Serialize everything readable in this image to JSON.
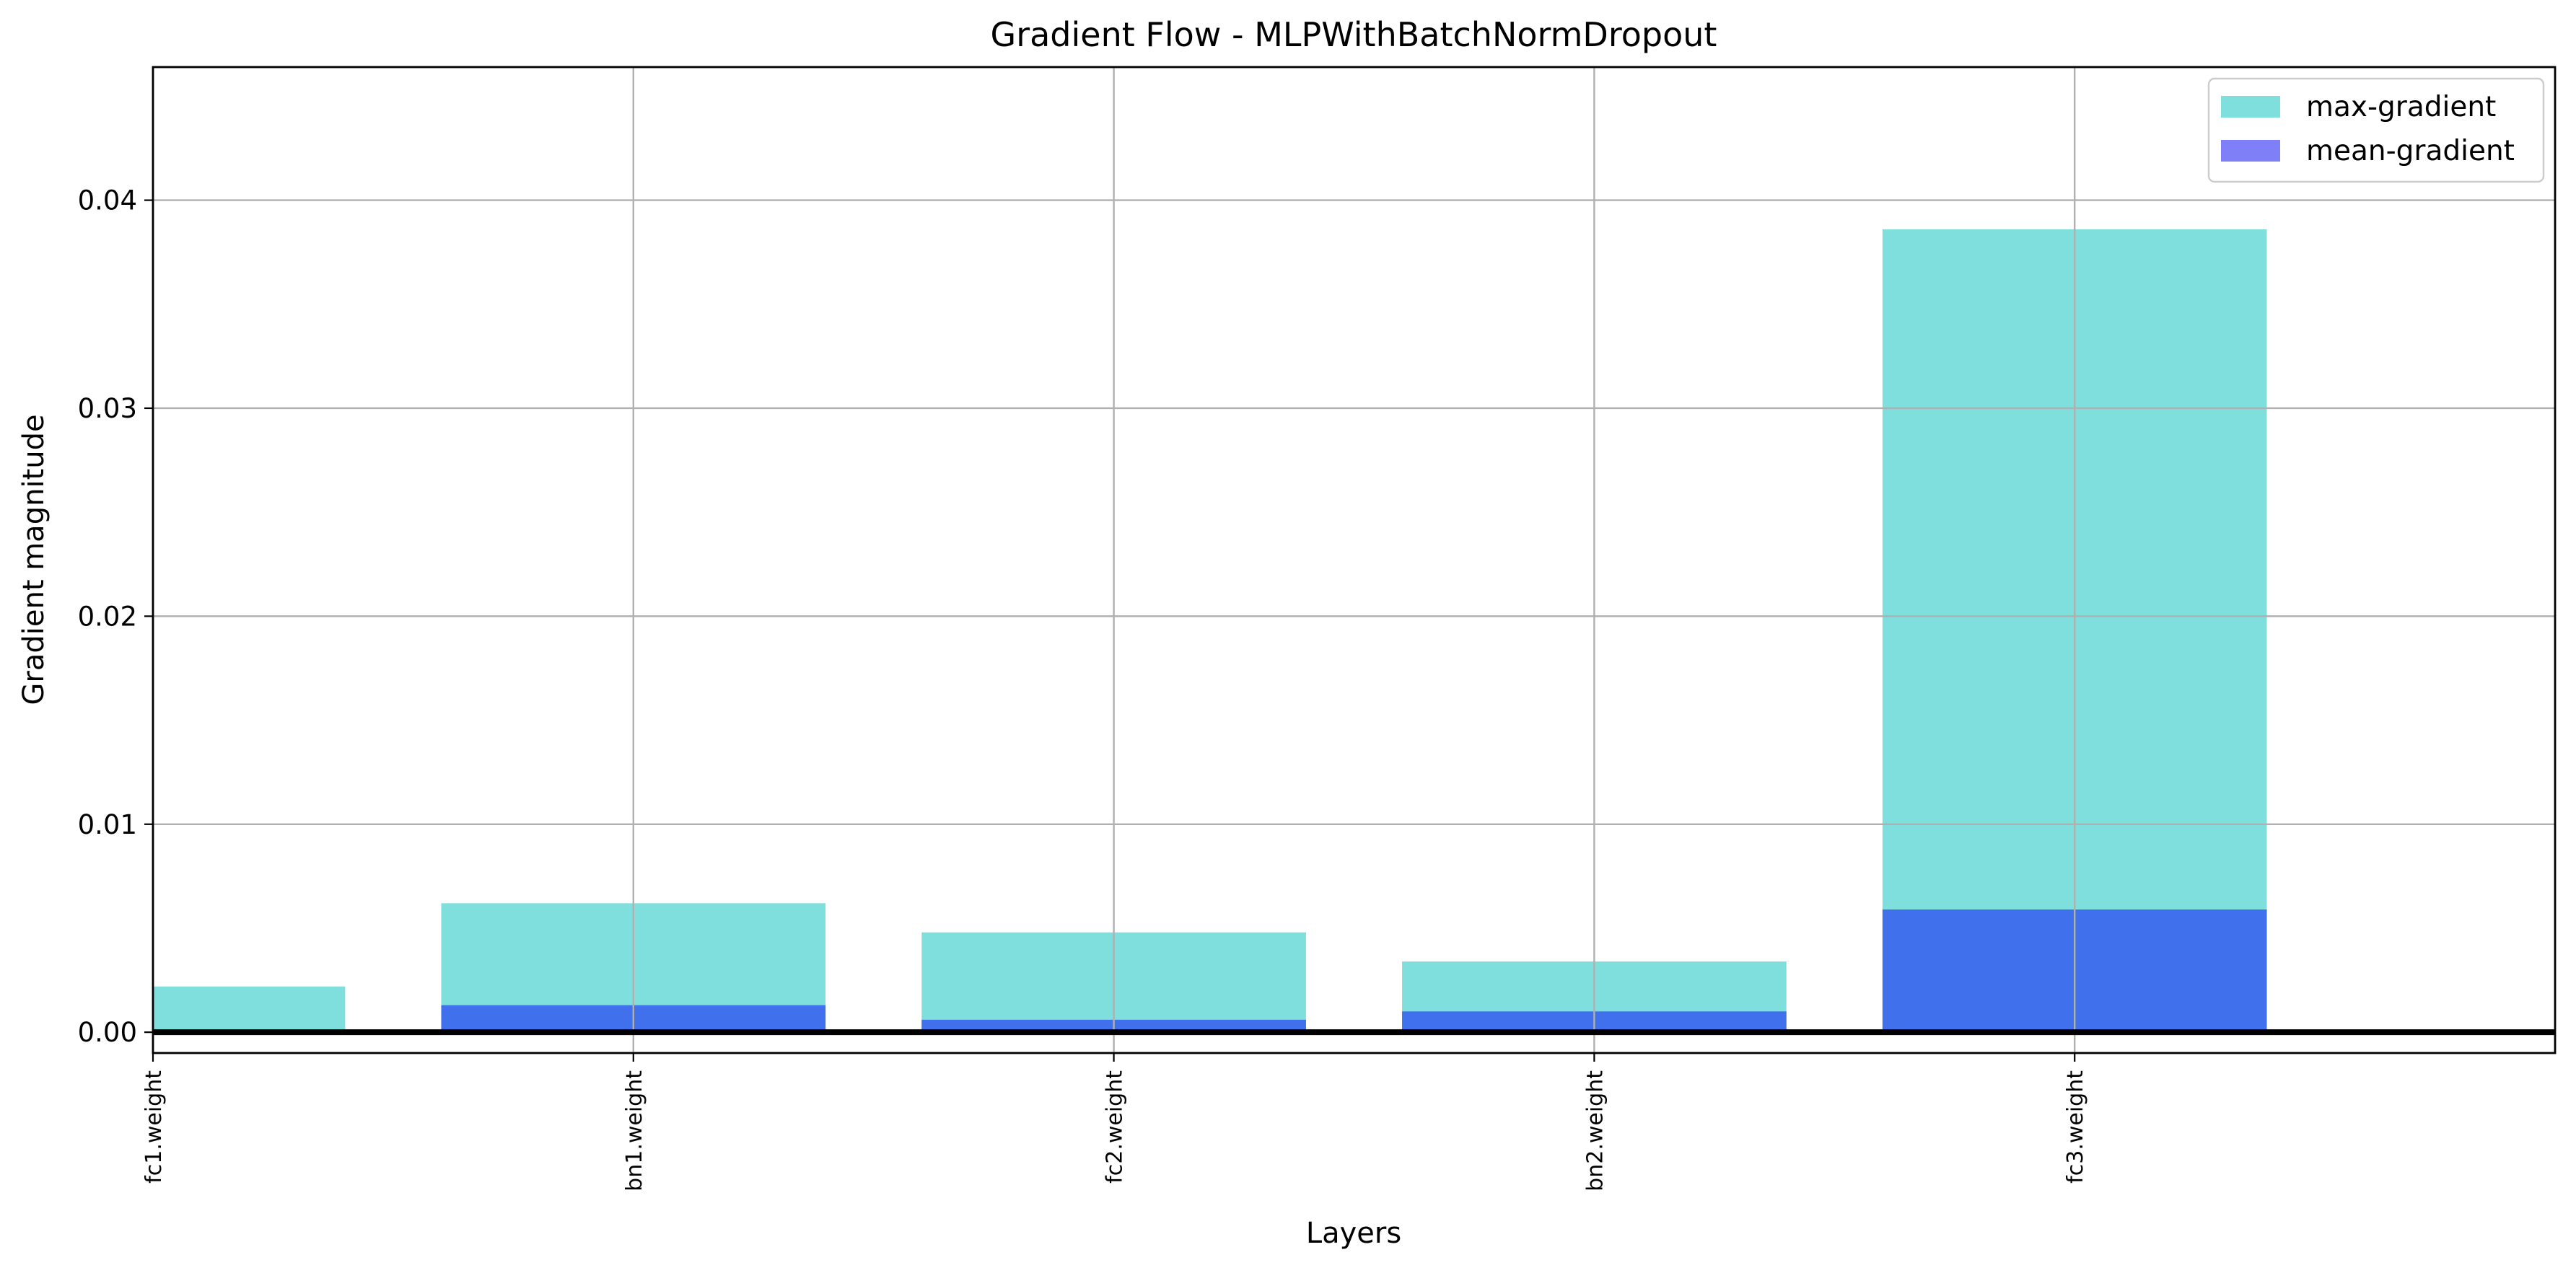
{
  "chart_data": {
    "type": "bar",
    "title": "Gradient Flow - MLPWithBatchNormDropout",
    "xlabel": "Layers",
    "ylabel": "Gradient magnitude",
    "categories": [
      "fc1.weight",
      "bn1.weight",
      "fc2.weight",
      "bn2.weight",
      "fc3.weight"
    ],
    "series": [
      {
        "name": "max-gradient",
        "color": "#7fdfdc",
        "values": [
          0.0022,
          0.0062,
          0.0048,
          0.0034,
          0.0386
        ]
      },
      {
        "name": "mean-gradient",
        "color": "#4070ec",
        "values": [
          0.0001,
          0.0013,
          0.0006,
          0.001,
          0.0059
        ]
      }
    ],
    "ylim": [
      -0.001,
      0.0464
    ],
    "yticks": [
      "0.00",
      "0.01",
      "0.02",
      "0.03",
      "0.04"
    ],
    "ytick_values": [
      0,
      0.01,
      0.02,
      0.03,
      0.04
    ],
    "legend": {
      "placement": "top-right",
      "entries": [
        {
          "label": "max-gradient",
          "color": "#7fdfdc"
        },
        {
          "label": "mean-gradient",
          "color": "#7f7ff7"
        }
      ]
    },
    "grid": true,
    "zero_line": true
  }
}
